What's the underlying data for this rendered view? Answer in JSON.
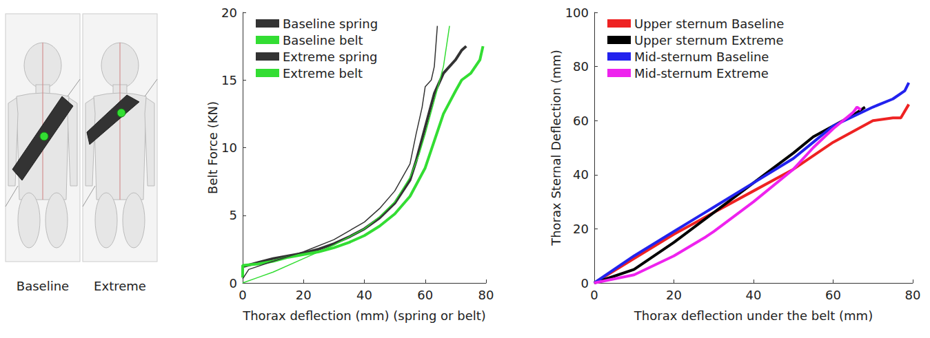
{
  "illustration": {
    "labels": [
      "Baseline",
      "Extreme"
    ]
  },
  "chart_data": [
    {
      "type": "line",
      "xlabel": "Thorax deflection (mm) (spring or belt)",
      "ylabel": "Belt Force (KN)",
      "xlim": [
        0,
        80
      ],
      "xticks": [
        0,
        20,
        40,
        60,
        80
      ],
      "ylim": [
        0,
        20
      ],
      "yticks": [
        0,
        5,
        10,
        15,
        20
      ],
      "grid": false,
      "legend": "top-left",
      "series": [
        {
          "name": "Baseline spring",
          "color": "#333333",
          "line_style": "thick",
          "x": [
            0,
            5,
            10,
            15,
            20,
            25,
            30,
            35,
            40,
            45,
            50,
            55,
            57,
            60,
            63,
            66,
            70,
            72,
            73.5
          ],
          "values": [
            1.2,
            1.5,
            1.8,
            2.0,
            2.2,
            2.5,
            2.9,
            3.4,
            4.0,
            4.8,
            5.9,
            7.6,
            9.0,
            11.5,
            14.0,
            15.5,
            16.5,
            17.2,
            17.5
          ]
        },
        {
          "name": "Baseline belt",
          "color": "#33dd33",
          "line_style": "thick",
          "x": [
            0,
            0,
            5,
            10,
            15,
            20,
            25,
            30,
            35,
            40,
            45,
            50,
            55,
            60,
            63,
            66,
            70,
            72,
            75,
            78,
            79
          ],
          "values": [
            0.4,
            1.3,
            1.4,
            1.6,
            1.9,
            2.1,
            2.3,
            2.6,
            3.0,
            3.5,
            4.2,
            5.1,
            6.4,
            8.5,
            10.5,
            12.5,
            14.2,
            15.0,
            15.5,
            16.5,
            17.5
          ]
        },
        {
          "name": "Extreme spring",
          "color": "#333333",
          "line_style": "thin",
          "x": [
            0,
            2,
            10,
            20,
            30,
            40,
            45,
            50,
            55,
            57,
            59,
            60,
            62,
            63,
            64
          ],
          "values": [
            0.3,
            1.0,
            1.6,
            2.3,
            3.2,
            4.5,
            5.5,
            6.8,
            8.8,
            11.0,
            13.0,
            14.5,
            15.0,
            16.0,
            19.0
          ]
        },
        {
          "name": "Extreme belt",
          "color": "#33dd33",
          "line_style": "thin",
          "x": [
            0,
            5,
            10,
            20,
            30,
            40,
            45,
            50,
            55,
            58,
            60,
            63,
            66,
            68
          ],
          "values": [
            0.0,
            0.4,
            0.8,
            1.8,
            2.8,
            4.0,
            4.9,
            6.0,
            7.8,
            9.5,
            11.0,
            13.5,
            16.0,
            19.0
          ]
        }
      ]
    },
    {
      "type": "line",
      "xlabel": "Thorax deflection under the belt (mm)",
      "ylabel": "Thorax Sternal Deflection (mm)",
      "xlim": [
        0,
        80
      ],
      "xticks": [
        0,
        20,
        40,
        60,
        80
      ],
      "ylim": [
        0,
        100
      ],
      "yticks": [
        0,
        20,
        40,
        60,
        80,
        100
      ],
      "grid": false,
      "legend": "top-left",
      "series": [
        {
          "name": "Upper sternum Baseline",
          "color": "#ee2222",
          "line_style": "thick",
          "x": [
            0,
            10,
            20,
            30,
            40,
            50,
            60,
            70,
            75,
            77,
            79
          ],
          "values": [
            0,
            9,
            18,
            26,
            34,
            42,
            52,
            60,
            61,
            61,
            66
          ]
        },
        {
          "name": "Upper sternum Extreme",
          "color": "#000000",
          "line_style": "thick",
          "x": [
            0,
            10,
            20,
            30,
            40,
            50,
            55,
            60,
            65,
            68
          ],
          "values": [
            0,
            5,
            15,
            26,
            37,
            48,
            54,
            58,
            62,
            65
          ]
        },
        {
          "name": "Mid-sternum Baseline",
          "color": "#2222ee",
          "line_style": "thick",
          "x": [
            0,
            10,
            20,
            30,
            40,
            50,
            55,
            60,
            70,
            75,
            78,
            79
          ],
          "values": [
            0,
            10,
            19,
            28,
            37,
            46,
            52,
            58,
            65,
            68,
            71,
            74
          ]
        },
        {
          "name": "Mid-sternum Extreme",
          "color": "#ee22ee",
          "line_style": "thick",
          "x": [
            0,
            10,
            20,
            28,
            30,
            40,
            50,
            55,
            60,
            65,
            66,
            67
          ],
          "values": [
            0,
            3,
            10,
            17,
            19,
            30,
            42,
            50,
            57,
            63,
            65,
            64
          ]
        }
      ]
    }
  ]
}
